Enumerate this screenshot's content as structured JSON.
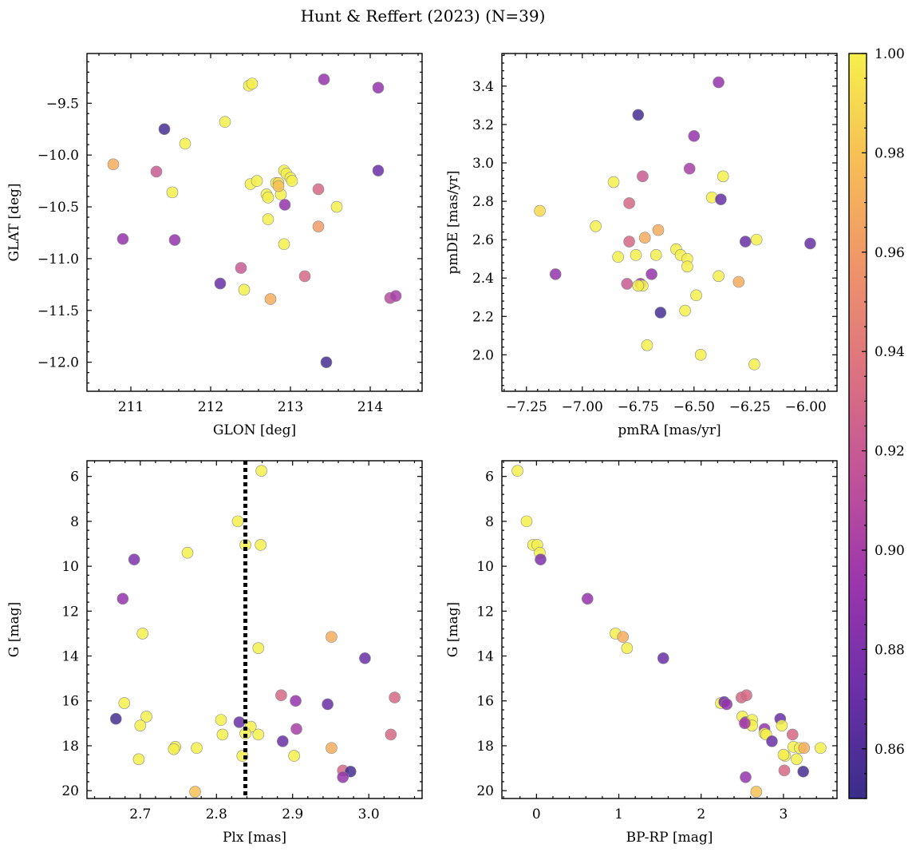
{
  "chart_data": {
    "type": "scatter",
    "title": "Hunt & Reffert (2023) (N=39)",
    "colormap": "plasma",
    "colorbar": {
      "range": [
        0.85,
        1.0
      ],
      "ticks": [
        0.86,
        0.88,
        0.9,
        0.92,
        0.94,
        0.96,
        0.98,
        1.0
      ],
      "tick_labels": [
        "0.86",
        "0.88",
        "0.90",
        "0.92",
        "0.94",
        "0.96",
        "0.98",
        "1.00"
      ],
      "stops": [
        "#3a2e8a",
        "#6b2fa8",
        "#9a35ad",
        "#c0529a",
        "#dc7280",
        "#ef946a",
        "#f7be55",
        "#f5f04c"
      ]
    },
    "panels": [
      {
        "id": "glon-glat",
        "xlabel": "GLON [deg]",
        "ylabel": "GLAT [deg]",
        "xlim": [
          210.45,
          214.65
        ],
        "ylim": [
          -12.28,
          -9.02
        ],
        "y_inverted": false,
        "xticks": [
          211,
          212,
          213,
          214
        ],
        "xtick_labels": [
          "211",
          "212",
          "213",
          "214"
        ],
        "yticks": [
          -12.0,
          -11.5,
          -11.0,
          -10.5,
          -10.0,
          -9.5
        ],
        "ytick_labels": [
          "−12.0",
          "−11.5",
          "−11.0",
          "−10.5",
          "−10.0",
          "−9.5"
        ],
        "points": [
          [
            210.78,
            -10.09,
            0.97
          ],
          [
            211.32,
            -10.16,
            0.92
          ],
          [
            211.42,
            -9.75,
            0.855
          ],
          [
            211.52,
            -10.36,
            1.0
          ],
          [
            211.68,
            -9.89,
            1.0
          ],
          [
            210.9,
            -10.81,
            0.89
          ],
          [
            211.55,
            -10.82,
            0.89
          ],
          [
            212.18,
            -9.68,
            1.0
          ],
          [
            212.48,
            -9.33,
            1.0
          ],
          [
            212.52,
            -9.31,
            1.0
          ],
          [
            213.42,
            -9.27,
            0.89
          ],
          [
            214.1,
            -9.35,
            0.89
          ],
          [
            214.1,
            -10.15,
            0.87
          ],
          [
            212.5,
            -10.28,
            1.0
          ],
          [
            212.58,
            -10.25,
            1.0
          ],
          [
            212.7,
            -10.38,
            1.0
          ],
          [
            212.72,
            -10.41,
            1.0
          ],
          [
            212.82,
            -10.27,
            1.0
          ],
          [
            212.88,
            -10.38,
            1.0
          ],
          [
            212.92,
            -10.15,
            1.0
          ],
          [
            212.95,
            -10.18,
            1.0
          ],
          [
            213.0,
            -10.22,
            1.0
          ],
          [
            213.02,
            -10.25,
            1.0
          ],
          [
            212.93,
            -10.48,
            0.89
          ],
          [
            212.72,
            -10.62,
            1.0
          ],
          [
            213.35,
            -10.33,
            0.93
          ],
          [
            213.58,
            -10.5,
            1.0
          ],
          [
            213.35,
            -10.69,
            0.96
          ],
          [
            212.92,
            -10.86,
            1.0
          ],
          [
            212.38,
            -11.09,
            0.92
          ],
          [
            212.12,
            -11.24,
            0.87
          ],
          [
            212.42,
            -11.3,
            1.0
          ],
          [
            212.75,
            -11.39,
            0.97
          ],
          [
            213.18,
            -11.17,
            0.93
          ],
          [
            214.25,
            -11.38,
            0.91
          ],
          [
            214.32,
            -11.36,
            0.9
          ],
          [
            213.45,
            -12.0,
            0.855
          ],
          [
            212.85,
            -10.27,
            0.99
          ],
          [
            212.85,
            -10.3,
            0.98
          ]
        ]
      },
      {
        "id": "pmra-pmde",
        "xlabel": "pmRA [mas/yr]",
        "ylabel": "pmDE [mas/yr]",
        "xlim": [
          -7.36,
          -5.86
        ],
        "ylim": [
          1.81,
          3.57
        ],
        "y_inverted": false,
        "xticks": [
          -7.25,
          -7.0,
          -6.75,
          -6.5,
          -6.25,
          -6.0
        ],
        "xtick_labels": [
          "−7.25",
          "−7.00",
          "−6.75",
          "−6.50",
          "−6.25",
          "−6.00"
        ],
        "yticks": [
          2.0,
          2.2,
          2.4,
          2.6,
          2.8,
          3.0,
          3.2,
          3.4
        ],
        "ytick_labels": [
          "2.0",
          "2.2",
          "2.4",
          "2.6",
          "2.8",
          "3.0",
          "3.2",
          "3.4"
        ],
        "points": [
          [
            -6.39,
            3.42,
            0.89
          ],
          [
            -6.75,
            3.25,
            0.855
          ],
          [
            -6.5,
            3.14,
            0.89
          ],
          [
            -6.52,
            2.97,
            0.9
          ],
          [
            -6.73,
            2.93,
            0.92
          ],
          [
            -6.37,
            2.93,
            1.0
          ],
          [
            -6.86,
            2.9,
            1.0
          ],
          [
            -6.42,
            2.82,
            1.0
          ],
          [
            -6.38,
            2.81,
            0.87
          ],
          [
            -6.79,
            2.79,
            0.93
          ],
          [
            -7.19,
            2.75,
            0.99
          ],
          [
            -6.94,
            2.67,
            1.0
          ],
          [
            -6.66,
            2.65,
            0.97
          ],
          [
            -6.72,
            2.61,
            0.97
          ],
          [
            -6.79,
            2.59,
            0.93
          ],
          [
            -6.58,
            2.55,
            1.0
          ],
          [
            -6.56,
            2.52,
            1.0
          ],
          [
            -6.27,
            2.59,
            0.87
          ],
          [
            -6.22,
            2.6,
            1.0
          ],
          [
            -5.98,
            2.58,
            0.87
          ],
          [
            -6.84,
            2.51,
            1.0
          ],
          [
            -6.76,
            2.52,
            1.0
          ],
          [
            -6.67,
            2.52,
            1.0
          ],
          [
            -6.53,
            2.5,
            1.0
          ],
          [
            -6.53,
            2.46,
            1.0
          ],
          [
            -7.12,
            2.42,
            0.89
          ],
          [
            -6.69,
            2.42,
            0.89
          ],
          [
            -6.8,
            2.37,
            0.92
          ],
          [
            -6.74,
            2.37,
            0.89
          ],
          [
            -6.73,
            2.36,
            1.0
          ],
          [
            -6.75,
            2.36,
            1.0
          ],
          [
            -6.39,
            2.41,
            1.0
          ],
          [
            -6.3,
            2.38,
            0.97
          ],
          [
            -6.49,
            2.31,
            1.0
          ],
          [
            -6.54,
            2.23,
            1.0
          ],
          [
            -6.65,
            2.22,
            0.855
          ],
          [
            -6.71,
            2.05,
            1.0
          ],
          [
            -6.47,
            2.0,
            1.0
          ],
          [
            -6.23,
            1.95,
            1.0
          ]
        ]
      },
      {
        "id": "plx-g",
        "xlabel": "Plx [mas]",
        "ylabel": "G [mag]",
        "xlim": [
          2.63,
          3.07
        ],
        "ylim": [
          20.35,
          5.3
        ],
        "y_inverted": true,
        "vline": 2.838,
        "xticks": [
          2.7,
          2.8,
          2.9,
          3.0
        ],
        "xtick_labels": [
          "2.7",
          "2.8",
          "2.9",
          "3.0"
        ],
        "yticks": [
          6,
          8,
          10,
          12,
          14,
          16,
          18,
          20
        ],
        "ytick_labels": [
          "6",
          "8",
          "10",
          "12",
          "14",
          "16",
          "18",
          "20"
        ],
        "points": [
          [
            2.859,
            5.75,
            1.0
          ],
          [
            2.828,
            8.0,
            1.0
          ],
          [
            2.838,
            9.05,
            1.0
          ],
          [
            2.858,
            9.05,
            1.0
          ],
          [
            2.762,
            9.4,
            1.0
          ],
          [
            2.692,
            9.7,
            0.88
          ],
          [
            2.677,
            11.45,
            0.89
          ],
          [
            2.703,
            13.0,
            1.0
          ],
          [
            2.951,
            13.15,
            0.97
          ],
          [
            2.855,
            13.65,
            1.0
          ],
          [
            2.995,
            14.1,
            0.87
          ],
          [
            2.885,
            15.75,
            0.93
          ],
          [
            3.034,
            15.85,
            0.93
          ],
          [
            2.904,
            16.0,
            0.89
          ],
          [
            2.679,
            16.1,
            1.0
          ],
          [
            2.946,
            16.15,
            0.87
          ],
          [
            2.668,
            16.8,
            0.855
          ],
          [
            2.708,
            16.7,
            1.0
          ],
          [
            2.806,
            16.85,
            1.0
          ],
          [
            2.83,
            16.95,
            0.87
          ],
          [
            2.7,
            17.1,
            1.0
          ],
          [
            2.845,
            17.15,
            1.0
          ],
          [
            2.905,
            17.25,
            0.9
          ],
          [
            2.808,
            17.5,
            1.0
          ],
          [
            2.838,
            17.45,
            1.0
          ],
          [
            2.855,
            17.5,
            1.0
          ],
          [
            3.029,
            17.5,
            0.93
          ],
          [
            2.887,
            17.8,
            0.87
          ],
          [
            2.746,
            18.05,
            1.0
          ],
          [
            2.744,
            18.15,
            1.0
          ],
          [
            2.774,
            18.1,
            1.0
          ],
          [
            2.951,
            18.1,
            0.97
          ],
          [
            2.834,
            18.45,
            1.0
          ],
          [
            2.902,
            18.45,
            1.0
          ],
          [
            2.698,
            18.6,
            1.0
          ],
          [
            2.966,
            19.1,
            0.93
          ],
          [
            2.976,
            19.15,
            0.855
          ],
          [
            2.966,
            19.4,
            0.89
          ],
          [
            2.772,
            20.05,
            0.98
          ]
        ]
      },
      {
        "id": "bprp-g",
        "xlabel": "BP-RP [mag]",
        "ylabel": "G [mag]",
        "xlim": [
          -0.42,
          3.65
        ],
        "ylim": [
          20.35,
          5.3
        ],
        "y_inverted": true,
        "xticks": [
          0,
          1,
          2,
          3
        ],
        "xtick_labels": [
          "0",
          "1",
          "2",
          "3"
        ],
        "yticks": [
          6,
          8,
          10,
          12,
          14,
          16,
          18,
          20
        ],
        "ytick_labels": [
          "6",
          "8",
          "10",
          "12",
          "14",
          "16",
          "18",
          "20"
        ],
        "points": [
          [
            -0.23,
            5.75,
            1.0
          ],
          [
            -0.12,
            8.0,
            1.0
          ],
          [
            -0.04,
            9.05,
            1.0
          ],
          [
            0.01,
            9.05,
            1.0
          ],
          [
            0.04,
            9.4,
            1.0
          ],
          [
            0.05,
            9.7,
            0.88
          ],
          [
            0.62,
            11.45,
            0.89
          ],
          [
            0.96,
            13.0,
            1.0
          ],
          [
            1.05,
            13.15,
            0.97
          ],
          [
            1.1,
            13.65,
            1.0
          ],
          [
            1.54,
            14.1,
            0.87
          ],
          [
            2.24,
            16.1,
            1.0
          ],
          [
            2.28,
            16.05,
            0.87
          ],
          [
            2.31,
            16.15,
            0.89
          ],
          [
            2.49,
            15.85,
            0.93
          ],
          [
            2.55,
            15.75,
            0.93
          ],
          [
            2.5,
            16.7,
            1.0
          ],
          [
            2.54,
            16.95,
            0.89
          ],
          [
            2.62,
            16.85,
            1.0
          ],
          [
            2.62,
            17.1,
            1.0
          ],
          [
            2.77,
            17.25,
            0.89
          ],
          [
            2.77,
            17.45,
            1.0
          ],
          [
            2.79,
            17.5,
            1.0
          ],
          [
            2.96,
            16.8,
            0.87
          ],
          [
            2.98,
            17.1,
            1.0
          ],
          [
            3.11,
            17.5,
            0.93
          ],
          [
            2.86,
            17.8,
            0.87
          ],
          [
            3.12,
            18.05,
            1.0
          ],
          [
            3.2,
            18.1,
            1.0
          ],
          [
            3.25,
            18.1,
            0.97
          ],
          [
            3.45,
            18.1,
            1.0
          ],
          [
            3.02,
            18.45,
            1.0
          ],
          [
            3.16,
            18.6,
            1.0
          ],
          [
            3.01,
            19.1,
            0.93
          ],
          [
            3.24,
            19.15,
            0.855
          ],
          [
            2.54,
            19.4,
            0.89
          ],
          [
            2.67,
            20.05,
            0.98
          ],
          [
            2.53,
            17.0,
            0.9
          ],
          [
            3.0,
            18.4,
            1.0
          ]
        ]
      }
    ]
  }
}
